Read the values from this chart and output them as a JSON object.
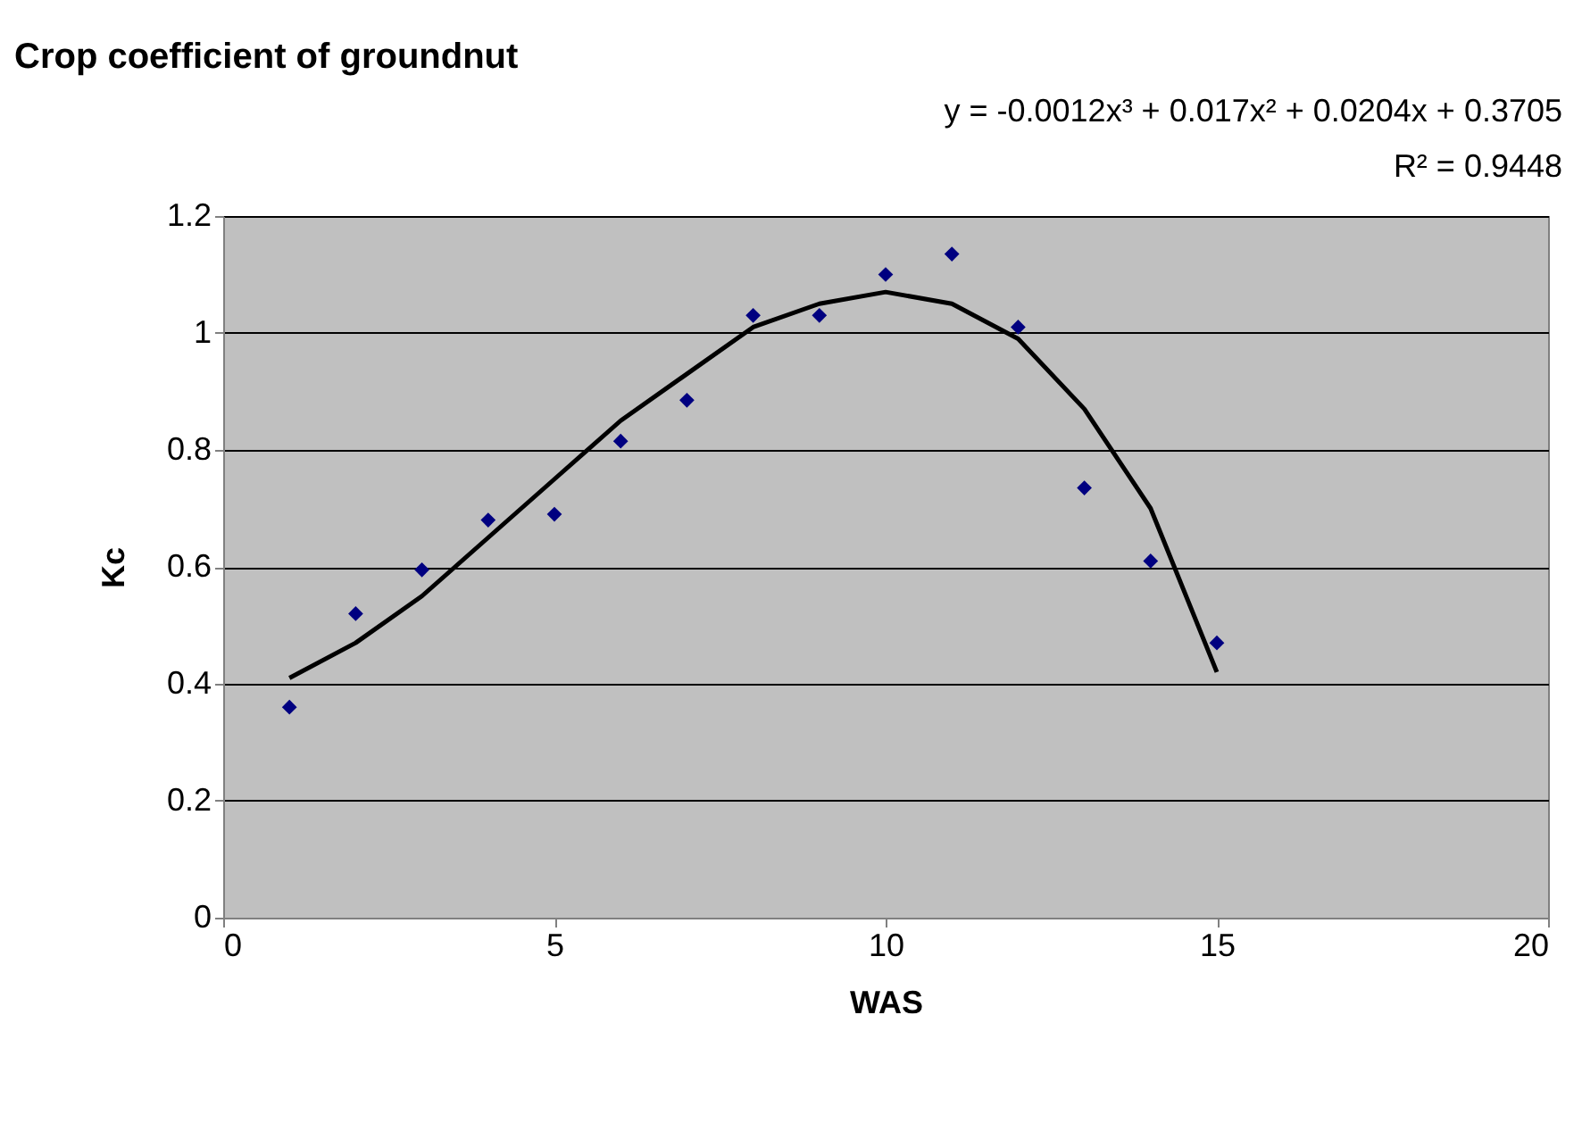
{
  "chart_data": {
    "type": "scatter",
    "title": "Crop coefficient of groundnut",
    "xlabel": "WAS",
    "ylabel": "Kc",
    "annotations": [
      "y = -0.0012x³ + 0.017x² + 0.0204x + 0.3705",
      "R² = 0.9448"
    ],
    "xlim": [
      0,
      20
    ],
    "xticks": [
      0,
      5,
      10,
      15,
      20
    ],
    "ylim": [
      0,
      1.2
    ],
    "yticks": [
      0,
      0.2,
      0.4,
      0.6,
      0.8,
      1,
      1.2
    ],
    "grid": "y",
    "series": [
      {
        "type": "scatter",
        "marker": "diamond",
        "color": "#000080",
        "x": [
          1,
          2,
          3,
          4,
          5,
          6,
          7,
          8,
          9,
          10,
          11,
          12,
          13,
          14,
          15
        ],
        "values": [
          0.36,
          0.52,
          0.595,
          0.68,
          0.69,
          0.815,
          0.885,
          1.03,
          1.03,
          1.1,
          1.135,
          1.01,
          0.735,
          0.61,
          0.47
        ]
      },
      {
        "type": "line",
        "line_style": "solid",
        "color": "#000000",
        "x": [
          1,
          2,
          3,
          4,
          5,
          6,
          7,
          8,
          9,
          10,
          11,
          12,
          13,
          14,
          15
        ],
        "values": [
          0.41,
          0.47,
          0.55,
          0.65,
          0.75,
          0.85,
          0.93,
          1.01,
          1.05,
          1.07,
          1.05,
          0.99,
          0.87,
          0.7,
          0.42
        ]
      }
    ]
  }
}
